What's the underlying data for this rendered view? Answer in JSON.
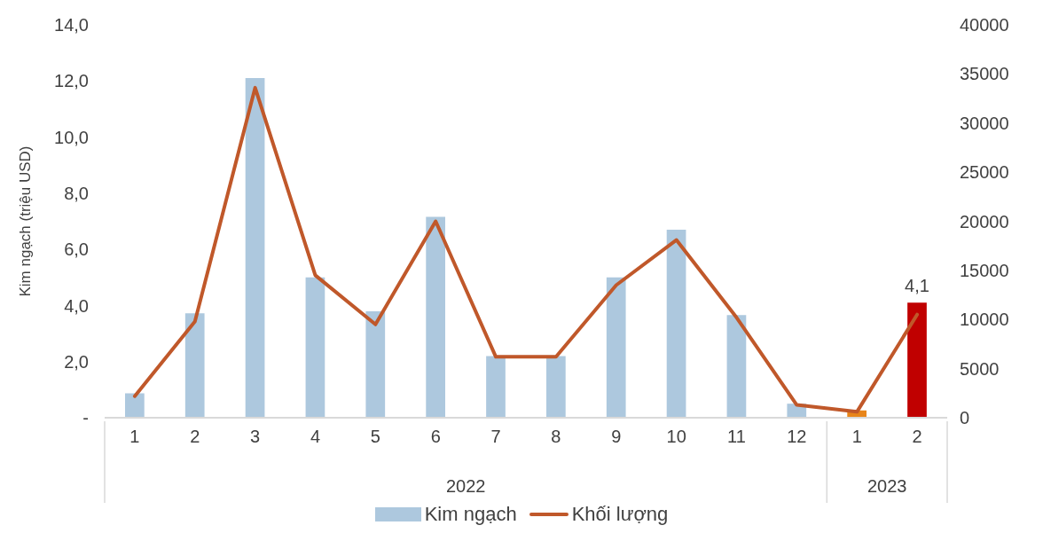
{
  "chart_data": {
    "type": "bar",
    "ylabel": "Kim ngạch (triệu USD)",
    "categories": [
      "1",
      "2",
      "3",
      "4",
      "5",
      "6",
      "7",
      "8",
      "9",
      "10",
      "11",
      "12",
      "1",
      "2"
    ],
    "annotations": [
      "2022",
      "2023"
    ],
    "series": [
      {
        "name": "Kim ngạch",
        "color": "#adc8de",
        "colors": [
          "#adc8de",
          "#adc8de",
          "#adc8de",
          "#adc8de",
          "#adc8de",
          "#adc8de",
          "#adc8de",
          "#adc8de",
          "#adc8de",
          "#adc8de",
          "#adc8de",
          "#adc8de",
          "#e8851a",
          "#c00000"
        ],
        "values": [
          0.87,
          3.72,
          12.1,
          5.0,
          3.79,
          7.16,
          2.2,
          2.2,
          5.0,
          6.7,
          3.66,
          0.5,
          0.26,
          4.1
        ],
        "value_labels": [
          null,
          null,
          null,
          null,
          null,
          null,
          null,
          null,
          null,
          null,
          null,
          null,
          null,
          "4,1"
        ]
      },
      {
        "name": "Khối lượng",
        "type": "line",
        "axis": "y2",
        "color": "#c0582a",
        "values": [
          2200,
          9800,
          33600,
          14500,
          9500,
          20000,
          6200,
          6200,
          13500,
          18100,
          10200,
          1300,
          600,
          10500
        ]
      }
    ],
    "ylim": [
      0,
      14
    ],
    "yticks": [
      {
        "value": 0,
        "label": "-"
      },
      {
        "value": 2,
        "label": "2,0"
      },
      {
        "value": 4,
        "label": "4,0"
      },
      {
        "value": 6,
        "label": "6,0"
      },
      {
        "value": 8,
        "label": "8,0"
      },
      {
        "value": 10,
        "label": "10,0"
      },
      {
        "value": 12,
        "label": "12,0"
      },
      {
        "value": 14,
        "label": "14,0"
      }
    ],
    "y2lim": [
      0,
      40000
    ],
    "y2ticks": [
      0,
      5000,
      10000,
      15000,
      20000,
      25000,
      30000,
      35000,
      40000
    ],
    "legend": "bottom",
    "marker": "none",
    "line_style": "solid"
  }
}
